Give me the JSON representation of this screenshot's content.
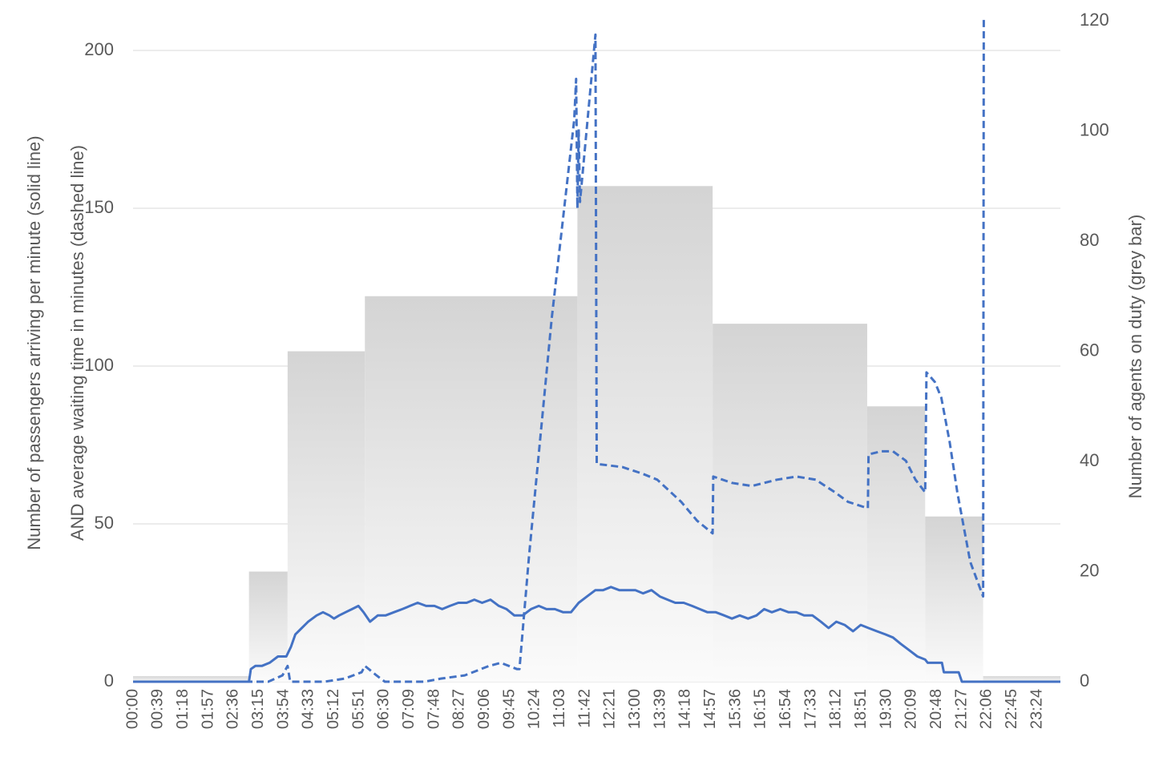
{
  "chart_data": {
    "type": "combo",
    "ylabel": [
      "Number of passengers arriving per minute (solid line)",
      "AND average waiting time in minutes (dashed line)"
    ],
    "y2label": "Number of agents on duty  (grey bar)",
    "xlim": [
      0,
      1440
    ],
    "xticks": [
      {
        "value": 0,
        "label": "00:00"
      },
      {
        "value": 39,
        "label": "00:39"
      },
      {
        "value": 78,
        "label": "01:18"
      },
      {
        "value": 117,
        "label": "01:57"
      },
      {
        "value": 156,
        "label": "02:36"
      },
      {
        "value": 195,
        "label": "03:15"
      },
      {
        "value": 234,
        "label": "03:54"
      },
      {
        "value": 273,
        "label": "04:33"
      },
      {
        "value": 312,
        "label": "05:12"
      },
      {
        "value": 351,
        "label": "05:51"
      },
      {
        "value": 390,
        "label": "06:30"
      },
      {
        "value": 429,
        "label": "07:09"
      },
      {
        "value": 468,
        "label": "07:48"
      },
      {
        "value": 507,
        "label": "08:27"
      },
      {
        "value": 546,
        "label": "09:06"
      },
      {
        "value": 585,
        "label": "09:45"
      },
      {
        "value": 624,
        "label": "10:24"
      },
      {
        "value": 663,
        "label": "11:03"
      },
      {
        "value": 702,
        "label": "11:42"
      },
      {
        "value": 741,
        "label": "12:21"
      },
      {
        "value": 780,
        "label": "13:00"
      },
      {
        "value": 819,
        "label": "13:39"
      },
      {
        "value": 858,
        "label": "14:18"
      },
      {
        "value": 897,
        "label": "14:57"
      },
      {
        "value": 936,
        "label": "15:36"
      },
      {
        "value": 975,
        "label": "16:15"
      },
      {
        "value": 1014,
        "label": "16:54"
      },
      {
        "value": 1053,
        "label": "17:33"
      },
      {
        "value": 1092,
        "label": "18:12"
      },
      {
        "value": 1131,
        "label": "18:51"
      },
      {
        "value": 1170,
        "label": "19:30"
      },
      {
        "value": 1209,
        "label": "20:09"
      },
      {
        "value": 1248,
        "label": "20:48"
      },
      {
        "value": 1287,
        "label": "21:27"
      },
      {
        "value": 1326,
        "label": "22:06"
      },
      {
        "value": 1365,
        "label": "22:45"
      },
      {
        "value": 1404,
        "label": "23:24"
      }
    ],
    "ylim": [
      0,
      210
    ],
    "yticks": [
      0,
      50,
      100,
      150,
      200
    ],
    "y2lim": [
      0,
      120
    ],
    "y2ticks": [
      0,
      20,
      40,
      60,
      80,
      100,
      120
    ],
    "grid": true,
    "series": [
      {
        "type": "bar",
        "axis": "y2",
        "color": "#d4d4d4",
        "bins": [
          0,
          180,
          240,
          360,
          690,
          900,
          1140,
          1230,
          1320,
          1440
        ],
        "values": [
          1,
          20,
          60,
          70,
          90,
          65,
          50,
          30,
          1
        ]
      },
      {
        "type": "line",
        "color": "#4472c4",
        "dash": false,
        "x": [
          0,
          180,
          183,
          190,
          200,
          212,
          225,
          238,
          245,
          252,
          262,
          272,
          285,
          295,
          305,
          312,
          320,
          330,
          340,
          350,
          358,
          368,
          380,
          392,
          405,
          418,
          430,
          442,
          455,
          468,
          480,
          492,
          505,
          518,
          530,
          542,
          555,
          568,
          580,
          592,
          605,
          618,
          630,
          642,
          655,
          668,
          680,
          692,
          705,
          718,
          730,
          742,
          755,
          768,
          780,
          792,
          805,
          818,
          830,
          842,
          855,
          868,
          880,
          892,
          905,
          918,
          930,
          942,
          955,
          968,
          980,
          992,
          1005,
          1018,
          1030,
          1042,
          1055,
          1068,
          1080,
          1092,
          1105,
          1118,
          1130,
          1142,
          1155,
          1168,
          1180,
          1192,
          1205,
          1218,
          1230,
          1234,
          1256,
          1259,
          1282,
          1287,
          1440
        ],
        "values": [
          0,
          0,
          4,
          5,
          5,
          6,
          8,
          8,
          11,
          15,
          17,
          19,
          21,
          22,
          21,
          20,
          21,
          22,
          23,
          24,
          22,
          19,
          21,
          21,
          22,
          23,
          24,
          25,
          24,
          24,
          23,
          24,
          25,
          25,
          26,
          25,
          26,
          24,
          23,
          21,
          21,
          23,
          24,
          23,
          23,
          22,
          22,
          25,
          27,
          29,
          29,
          30,
          29,
          29,
          29,
          28,
          29,
          27,
          26,
          25,
          25,
          24,
          23,
          22,
          22,
          21,
          20,
          21,
          20,
          21,
          23,
          22,
          23,
          22,
          22,
          21,
          21,
          19,
          17,
          19,
          18,
          16,
          18,
          17,
          16,
          15,
          14,
          12,
          10,
          8,
          7,
          6,
          6,
          3,
          3,
          0,
          0
        ]
      },
      {
        "type": "line",
        "color": "#4472c4",
        "dash": true,
        "x": [
          0,
          210,
          232,
          240,
          244,
          297,
          329,
          355,
          360,
          378,
          391,
          453,
          478,
          515,
          553,
          571,
          596,
          600,
          615,
          650,
          685,
          688,
          690,
          692,
          694,
          718,
          720,
          760,
          790,
          814,
          851,
          876,
          900,
          901,
          930,
          961,
          1000,
          1030,
          1060,
          1090,
          1110,
          1140,
          1141,
          1142,
          1162,
          1180,
          1200,
          1215,
          1230,
          1232,
          1245,
          1255,
          1268,
          1280,
          1300,
          1320,
          1321
        ],
        "values": [
          0,
          0,
          2,
          5,
          0,
          0,
          1,
          3,
          5,
          2,
          0,
          0,
          1,
          2,
          5,
          6,
          4,
          4,
          40,
          115,
          178,
          191,
          150,
          175,
          152,
          205,
          69,
          68,
          66,
          64,
          57,
          51,
          47,
          65,
          63,
          62,
          64,
          65,
          64,
          60,
          57,
          55,
          55,
          72,
          73,
          73,
          70,
          64,
          60,
          98,
          95,
          90,
          76,
          60,
          38,
          27,
          210
        ]
      }
    ]
  }
}
